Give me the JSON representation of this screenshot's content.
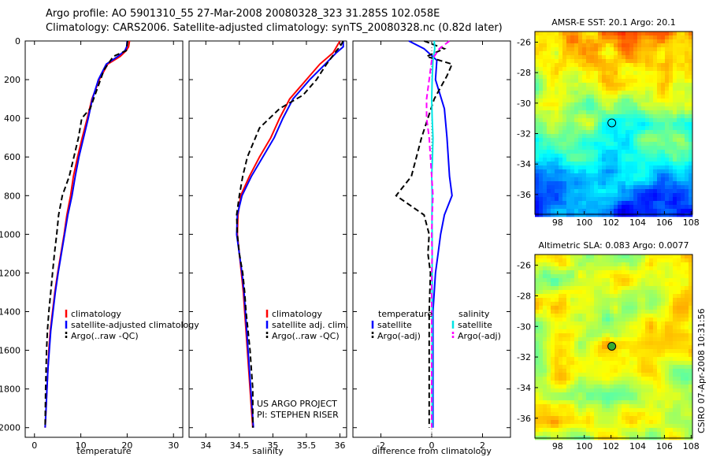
{
  "header": {
    "line1": "Argo profile: AO 5901310_55 27-Mar-2008 20080328_323 31.285S 102.058E",
    "line2": "Climatology: CARS2006. Satellite-adjusted climatology: synTS_20080328.nc (0.82d later)"
  },
  "colors": {
    "red": "#ff0000",
    "blue": "#0000ff",
    "black": "#000000",
    "cyan": "#00e5e5",
    "magenta": "#ff00ff"
  },
  "chart_data": [
    {
      "type": "line",
      "name": "temperature-profile",
      "xlabel": "temperature",
      "ylabel": "",
      "xlim": [
        -2,
        32
      ],
      "ylim": [
        0,
        2050
      ],
      "y_inverted": true,
      "x_ticks": [
        0,
        10,
        20,
        30
      ],
      "y_ticks": [
        0,
        200,
        400,
        600,
        800,
        1000,
        1200,
        1400,
        1600,
        1800,
        2000
      ],
      "legend": {
        "position": "lower-right",
        "entries": [
          "climatology",
          "satellite-adjusted climatology",
          "Argo(..raw -QC)"
        ]
      },
      "series": [
        {
          "name": "climatology",
          "color": "red",
          "dash": "solid",
          "x": [
            20.5,
            20.3,
            19.8,
            18.5,
            15.8,
            14.0,
            12.4,
            11.4,
            10.3,
            9.3,
            8.4,
            7.8,
            7.0,
            6.4,
            5.7,
            5.0,
            4.4,
            3.9,
            3.4,
            3.1,
            2.9,
            2.7,
            2.5,
            2.4,
            2.3
          ],
          "y": [
            0,
            30,
            50,
            80,
            120,
            200,
            300,
            400,
            500,
            600,
            700,
            800,
            900,
            1000,
            1100,
            1200,
            1300,
            1400,
            1500,
            1600,
            1700,
            1800,
            1900,
            1950,
            2000
          ]
        },
        {
          "name": "satellite-adjusted climatology",
          "color": "blue",
          "dash": "solid",
          "x": [
            20.0,
            19.9,
            19.5,
            18.0,
            15.5,
            13.8,
            12.5,
            11.6,
            10.6,
            9.6,
            8.8,
            8.1,
            7.2,
            6.5,
            5.8,
            5.1,
            4.5,
            4.0,
            3.5,
            3.2,
            2.9,
            2.7,
            2.5,
            2.4,
            2.3
          ],
          "y": [
            0,
            30,
            50,
            80,
            120,
            200,
            300,
            400,
            500,
            600,
            700,
            800,
            900,
            1000,
            1100,
            1200,
            1300,
            1400,
            1500,
            1600,
            1700,
            1800,
            1900,
            1950,
            2000
          ]
        },
        {
          "name": "Argo(..raw -QC)",
          "color": "black",
          "dash": "dashed",
          "x": [
            20.1,
            20.0,
            19.8,
            17.0,
            15.0,
            13.5,
            12.0,
            10.2,
            9.5,
            8.5,
            7.5,
            6.0,
            5.2,
            4.8,
            4.3,
            3.9,
            3.5,
            3.1,
            2.8,
            2.6,
            2.4,
            2.3
          ],
          "y": [
            0,
            20,
            50,
            80,
            150,
            250,
            350,
            400,
            500,
            600,
            700,
            800,
            900,
            1000,
            1100,
            1200,
            1300,
            1400,
            1500,
            1600,
            1800,
            2000
          ]
        }
      ],
      "annotations": []
    },
    {
      "type": "line",
      "name": "salinity-profile",
      "xlabel": "salinity",
      "ylabel": "",
      "xlim": [
        33.75,
        36.1
      ],
      "ylim": [
        0,
        2050
      ],
      "y_inverted": true,
      "x_ticks": [
        34,
        34.5,
        35,
        35.5,
        36
      ],
      "legend": {
        "position": "lower-right",
        "entries": [
          "climatology",
          "satellite adj. clim.",
          "Argo(..raw -QC)"
        ]
      },
      "series": [
        {
          "name": "climatology",
          "color": "red",
          "dash": "solid",
          "x": [
            36.0,
            35.95,
            35.9,
            35.7,
            35.5,
            35.25,
            35.1,
            34.97,
            34.8,
            34.65,
            34.52,
            34.48,
            34.47,
            34.5,
            34.53,
            34.56,
            34.58,
            34.6,
            34.62,
            34.64,
            34.66,
            34.68,
            34.7
          ],
          "y": [
            0,
            30,
            60,
            120,
            200,
            300,
            400,
            500,
            600,
            700,
            800,
            900,
            1000,
            1100,
            1200,
            1300,
            1400,
            1500,
            1600,
            1700,
            1800,
            1900,
            2000
          ]
        },
        {
          "name": "satellite adj. clim.",
          "color": "blue",
          "dash": "solid",
          "x": [
            36.05,
            36.05,
            35.95,
            35.78,
            35.55,
            35.3,
            35.15,
            35.02,
            34.85,
            34.68,
            34.54,
            34.47,
            34.46,
            34.5,
            34.54,
            34.57,
            34.59,
            34.61,
            34.63,
            34.65,
            34.67,
            34.69,
            34.71
          ],
          "y": [
            0,
            30,
            60,
            120,
            200,
            300,
            400,
            500,
            600,
            700,
            800,
            900,
            1000,
            1100,
            1200,
            1300,
            1400,
            1500,
            1600,
            1700,
            1800,
            1900,
            2000
          ]
        },
        {
          "name": "Argo(..raw -QC)",
          "color": "black",
          "dash": "dashed",
          "x": [
            36.05,
            36.0,
            35.95,
            35.8,
            35.65,
            35.45,
            35.1,
            34.8,
            34.62,
            34.55,
            34.5,
            34.46,
            34.47,
            34.5,
            34.55,
            34.58,
            34.6,
            34.63,
            34.66,
            34.68,
            34.7,
            34.7
          ],
          "y": [
            0,
            30,
            50,
            120,
            200,
            280,
            350,
            450,
            600,
            700,
            800,
            900,
            1000,
            1100,
            1200,
            1300,
            1400,
            1500,
            1600,
            1700,
            1800,
            2000
          ]
        }
      ],
      "annotations": [
        "US ARGO PROJECT",
        "PI: STEPHEN RISER"
      ]
    },
    {
      "type": "line",
      "name": "difference-profile",
      "xlabel": "difference from climatology",
      "ylabel": "",
      "xlim": [
        -3.1,
        3.1
      ],
      "ylim": [
        0,
        2050
      ],
      "y_inverted": true,
      "x_ticks": [
        -2,
        0,
        2
      ],
      "legend": {
        "position": "lower-center",
        "columns": [
          "temperature",
          "salinity"
        ],
        "entries": [
          "satellite",
          "Argo(-adj)",
          "satellite",
          "Argo(-adj)"
        ]
      },
      "series": [
        {
          "name": "temperature satellite",
          "color": "blue",
          "dash": "solid",
          "x": [
            -0.9,
            -0.3,
            0.2,
            0.15,
            0.5,
            0.6,
            0.65,
            0.7,
            0.8,
            0.5,
            0.35,
            0.25,
            0.15,
            0.1,
            0.05,
            0.05,
            0.05,
            0.05,
            0.05,
            0.05,
            0.05
          ],
          "y": [
            0,
            40,
            100,
            200,
            350,
            500,
            600,
            700,
            800,
            900,
            1000,
            1100,
            1200,
            1300,
            1400,
            1500,
            1600,
            1700,
            1800,
            1900,
            2000
          ]
        },
        {
          "name": "temperature Argo(-adj)",
          "color": "black",
          "dash": "dashed",
          "x": [
            -0.3,
            0.5,
            -0.2,
            0.8,
            0.6,
            0.1,
            -0.4,
            -0.8,
            -1.4,
            -0.3,
            -0.1,
            -0.15,
            -0.05,
            -0.1,
            -0.1,
            -0.1,
            -0.1,
            -0.1,
            -0.1,
            -0.1
          ],
          "y": [
            0,
            40,
            80,
            120,
            180,
            300,
            500,
            700,
            800,
            900,
            1000,
            1100,
            1200,
            1400,
            1500,
            1600,
            1700,
            1800,
            1900,
            2000
          ]
        },
        {
          "name": "salinity satellite",
          "color": "cyan",
          "dash": "solid",
          "x": [
            0.1,
            0.12,
            0.05,
            0.02,
            0.0,
            0.02,
            0.05,
            0.03,
            0.0,
            0.02,
            0.01,
            0.02,
            0.02,
            0.02,
            0.02,
            0.02,
            0.02,
            0.02,
            0.02,
            0.02,
            0.02
          ],
          "y": [
            0,
            40,
            100,
            200,
            300,
            400,
            500,
            600,
            700,
            800,
            900,
            1000,
            1100,
            1200,
            1300,
            1400,
            1500,
            1600,
            1700,
            1800,
            2000
          ]
        },
        {
          "name": "salinity Argo(-adj)",
          "color": "magenta",
          "dash": "dashed",
          "x": [
            0.7,
            0.3,
            0.0,
            -0.1,
            -0.2,
            -0.2,
            -0.1,
            -0.05,
            0.0,
            0.05,
            0.02,
            0.0,
            0.02,
            0.0,
            0.0,
            0.0,
            0.0,
            0.0,
            0.0,
            0.0,
            0.0
          ],
          "y": [
            0,
            40,
            100,
            200,
            300,
            400,
            500,
            600,
            700,
            800,
            900,
            1000,
            1100,
            1200,
            1300,
            1400,
            1500,
            1600,
            1700,
            1800,
            2000
          ]
        }
      ],
      "annotations": []
    }
  ],
  "maps": [
    {
      "name": "amsre-sst-map",
      "title": "AMSR-E SST: 20.1 Argo: 20.1",
      "x_ticks": [
        "98",
        "100",
        "102",
        "104",
        "106",
        "108"
      ],
      "y_ticks": [
        "-26",
        "-28",
        "-30",
        "-32",
        "-34",
        "-36"
      ],
      "marker": {
        "lon": 102.06,
        "lat": -31.3
      }
    },
    {
      "name": "altimetric-sla-map",
      "title": "Altimetric SLA: 0.083 Argo: 0.0077",
      "x_ticks": [
        "98",
        "100",
        "102",
        "104",
        "106",
        "108"
      ],
      "y_ticks": [
        "-26",
        "-28",
        "-30",
        "-32",
        "-34",
        "-36"
      ],
      "marker": {
        "lon": 102.06,
        "lat": -31.3
      }
    }
  ],
  "footer": {
    "stamp": "CSIRO 07-Apr-2008 10:31:56"
  }
}
